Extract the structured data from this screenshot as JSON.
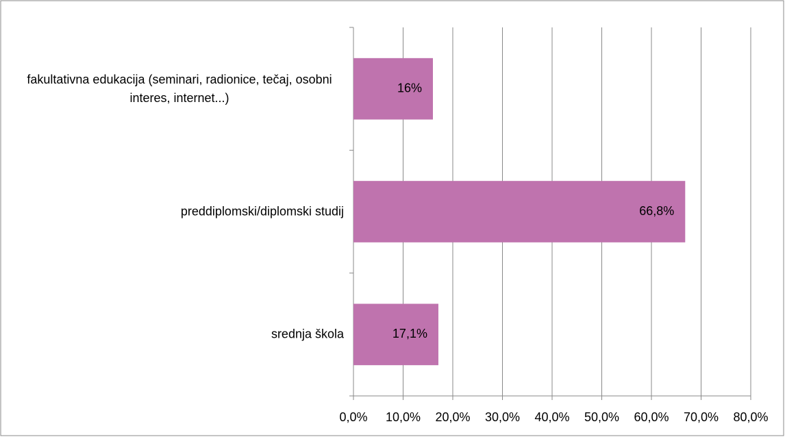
{
  "chart_data": {
    "type": "hbar",
    "categories": [
      "fakultativna edukacija (seminari, radionice, tečaj, osobni interes, internet...)",
      "preddiplomski/diplomski studij",
      "srednja škola"
    ],
    "values": [
      16,
      66.8,
      17.1
    ],
    "value_labels": [
      "16%",
      "66,8%",
      "17,1%"
    ],
    "color": "#bf73ae",
    "xlim": [
      0,
      80
    ],
    "xticks": [
      {
        "value": 0,
        "label": "0,0%"
      },
      {
        "value": 10,
        "label": "10,0%"
      },
      {
        "value": 20,
        "label": "20,0%"
      },
      {
        "value": 30,
        "label": "30,0%"
      },
      {
        "value": 40,
        "label": "40,0%"
      },
      {
        "value": 50,
        "label": "50,0%"
      },
      {
        "value": 60,
        "label": "60,0%"
      },
      {
        "value": 70,
        "label": "70,0%"
      },
      {
        "value": 80,
        "label": "80,0%"
      }
    ],
    "grid": true
  }
}
